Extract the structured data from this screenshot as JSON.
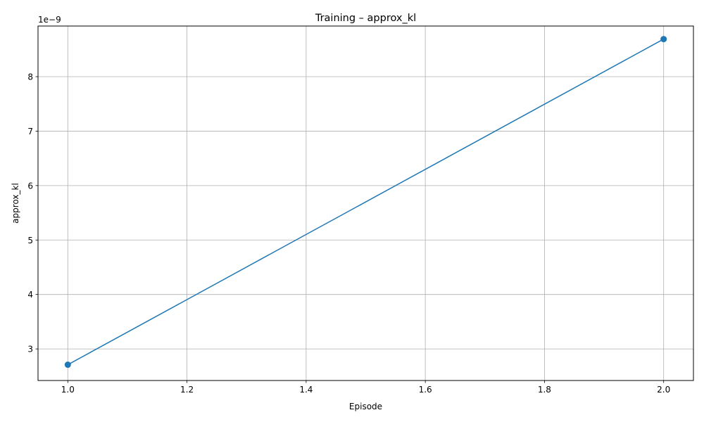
{
  "chart_data": {
    "type": "line",
    "title": "Training – approx_kl",
    "xlabel": "Episode",
    "ylabel": "approx_kl",
    "y_offset_label": "1e−9",
    "xlim": [
      0.95,
      2.05
    ],
    "ylim": [
      2.42,
      8.93
    ],
    "y_multiplier": 1e-09,
    "x_ticks": [
      1.0,
      1.2,
      1.4,
      1.6,
      1.8,
      2.0
    ],
    "x_tick_labels": [
      "1.0",
      "1.2",
      "1.4",
      "1.6",
      "1.8",
      "2.0"
    ],
    "y_ticks": [
      3,
      4,
      5,
      6,
      7,
      8
    ],
    "y_tick_labels": [
      "3",
      "4",
      "5",
      "6",
      "7",
      "8"
    ],
    "grid": true,
    "series": [
      {
        "color": "#1f77b4",
        "marker": "circle",
        "x": [
          1.0,
          2.0
        ],
        "y": [
          2.71,
          8.69
        ]
      }
    ]
  }
}
